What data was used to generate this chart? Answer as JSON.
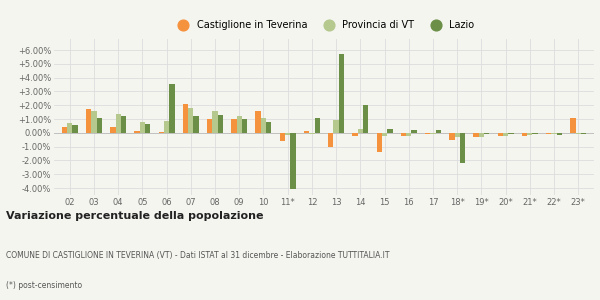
{
  "years": [
    "02",
    "03",
    "04",
    "05",
    "06",
    "07",
    "08",
    "09",
    "10",
    "11*",
    "12",
    "13",
    "14",
    "15",
    "16",
    "17",
    "18*",
    "19*",
    "20*",
    "21*",
    "22*",
    "23*"
  ],
  "castiglione": [
    0.4,
    1.7,
    0.45,
    0.1,
    0.05,
    2.1,
    1.0,
    1.0,
    1.6,
    -0.6,
    0.15,
    -1.0,
    -0.2,
    -1.4,
    -0.2,
    -0.1,
    -0.5,
    -0.3,
    -0.25,
    -0.2,
    -0.05,
    1.05
  ],
  "provincia_vt": [
    0.7,
    1.6,
    1.4,
    0.8,
    0.85,
    1.8,
    1.55,
    1.2,
    1.1,
    -0.15,
    -0.05,
    0.95,
    0.3,
    -0.2,
    -0.2,
    -0.1,
    -0.3,
    -0.3,
    -0.2,
    -0.15,
    -0.1,
    -0.1
  ],
  "lazio": [
    0.55,
    1.1,
    1.25,
    0.65,
    3.55,
    1.25,
    1.3,
    1.0,
    0.8,
    -4.05,
    1.05,
    5.7,
    2.05,
    0.3,
    0.2,
    0.2,
    -2.15,
    -0.05,
    -0.1,
    -0.1,
    -0.15,
    -0.05
  ],
  "color_castiglione": "#f5923e",
  "color_provincia": "#b5c98e",
  "color_lazio": "#6b8f47",
  "bg_color": "#f5f5f0",
  "grid_color": "#dddddd",
  "ylim_min": -4.5,
  "ylim_max": 6.8,
  "yticks": [
    -4.0,
    -3.0,
    -2.0,
    -1.0,
    0.0,
    1.0,
    2.0,
    3.0,
    4.0,
    5.0,
    6.0
  ],
  "title_bold": "Variazione percentuale della popolazione",
  "subtitle": "COMUNE DI CASTIGLIONE IN TEVERINA (VT) - Dati ISTAT al 31 dicembre - Elaborazione TUTTITALIA.IT",
  "footnote": "(*) post-censimento",
  "legend_castiglione": "Castiglione in Teverina",
  "legend_provincia": "Provincia di VT",
  "legend_lazio": "Lazio"
}
